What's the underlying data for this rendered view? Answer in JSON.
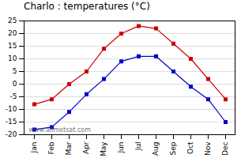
{
  "chart_data": {
    "type": "line",
    "title": "Charlo : temperatures (°C)",
    "categories": [
      "Jan",
      "Feb",
      "Mar",
      "Apr",
      "May",
      "Jun",
      "Jul",
      "Aug",
      "Sep",
      "Oct",
      "Nov",
      "Dec"
    ],
    "series": [
      {
        "color": "#cc0000",
        "marker": "square",
        "line_style": "solid",
        "values": [
          -8,
          -6,
          0,
          5,
          14,
          20,
          23,
          22,
          16,
          10,
          2,
          -6
        ]
      },
      {
        "color": "#0000cc",
        "marker": "square",
        "line_style": "solid",
        "values": [
          -18,
          -17,
          -11,
          -4,
          2,
          9,
          11,
          11,
          5,
          -1,
          -6,
          -15
        ]
      }
    ],
    "ylim": [
      -20,
      25
    ],
    "yticks": [
      -20,
      -15,
      -10,
      -5,
      0,
      5,
      10,
      15,
      20,
      25
    ],
    "grid": true,
    "annotations": [
      "www.allmetsat.com"
    ]
  }
}
